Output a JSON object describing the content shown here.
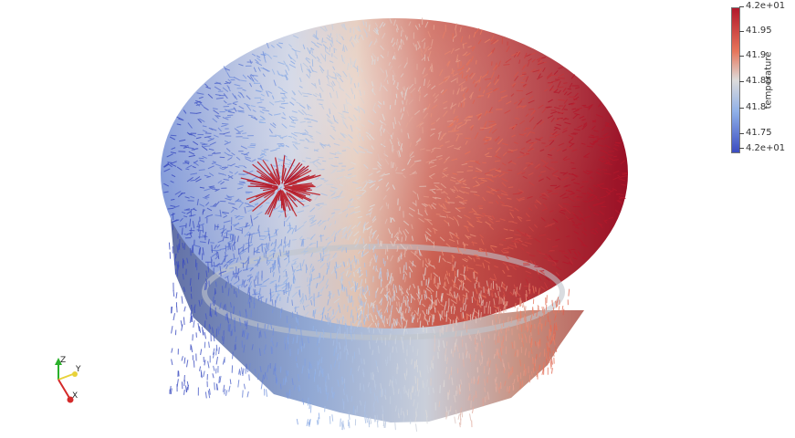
{
  "viewer": {
    "colormap": "Cool to Warm",
    "background_color": "#ffffff"
  },
  "legend": {
    "title": "temperature",
    "ticks": [
      {
        "label": "4.2e+01",
        "value": 42.0
      },
      {
        "label": "41.95",
        "value": 41.95
      },
      {
        "label": "41.9",
        "value": 41.9
      },
      {
        "label": "41.85",
        "value": 41.85
      },
      {
        "label": "41.8",
        "value": 41.8
      },
      {
        "label": "41.75",
        "value": 41.75
      },
      {
        "label": "4.2e+01",
        "value": 41.7
      }
    ],
    "colors": {
      "max": "#b2182b",
      "upper": "#e7765b",
      "mid": "#dddcdb",
      "lower": "#8fb0e8",
      "min": "#3b4cc0"
    }
  },
  "orientation_axes": {
    "z_label": "Z",
    "y_label": "Y",
    "x_label": "X",
    "z_color": "#2ab02a",
    "y_color": "#e8d23a",
    "x_color": "#d42a2a"
  }
}
